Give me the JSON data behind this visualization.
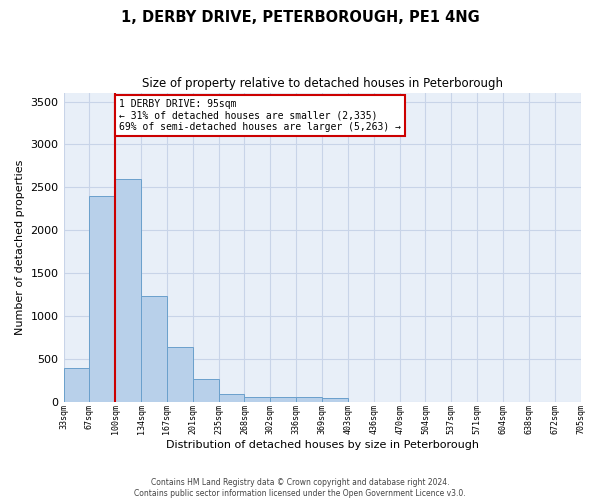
{
  "title": "1, DERBY DRIVE, PETERBOROUGH, PE1 4NG",
  "subtitle": "Size of property relative to detached houses in Peterborough",
  "xlabel": "Distribution of detached houses by size in Peterborough",
  "ylabel": "Number of detached properties",
  "footer_line1": "Contains HM Land Registry data © Crown copyright and database right 2024.",
  "footer_line2": "Contains public sector information licensed under the Open Government Licence v3.0.",
  "bar_values": [
    390,
    2400,
    2600,
    1230,
    640,
    260,
    95,
    60,
    60,
    55,
    40,
    0,
    0,
    0,
    0,
    0,
    0,
    0,
    0,
    0
  ],
  "x_labels": [
    "33sqm",
    "67sqm",
    "100sqm",
    "134sqm",
    "167sqm",
    "201sqm",
    "235sqm",
    "268sqm",
    "302sqm",
    "336sqm",
    "369sqm",
    "403sqm",
    "436sqm",
    "470sqm",
    "504sqm",
    "537sqm",
    "571sqm",
    "604sqm",
    "638sqm",
    "672sqm",
    "705sqm"
  ],
  "bar_color": "#b8d0ea",
  "bar_edge_color": "#6aa0cc",
  "grid_color": "#c8d4e8",
  "bg_color": "#e8eff8",
  "vline_color": "#cc0000",
  "annotation_text": "1 DERBY DRIVE: 95sqm\n← 31% of detached houses are smaller (2,335)\n69% of semi-detached houses are larger (5,263) →",
  "annotation_box_edgecolor": "#cc0000",
  "ylim": [
    0,
    3600
  ],
  "yticks": [
    0,
    500,
    1000,
    1500,
    2000,
    2500,
    3000,
    3500
  ]
}
